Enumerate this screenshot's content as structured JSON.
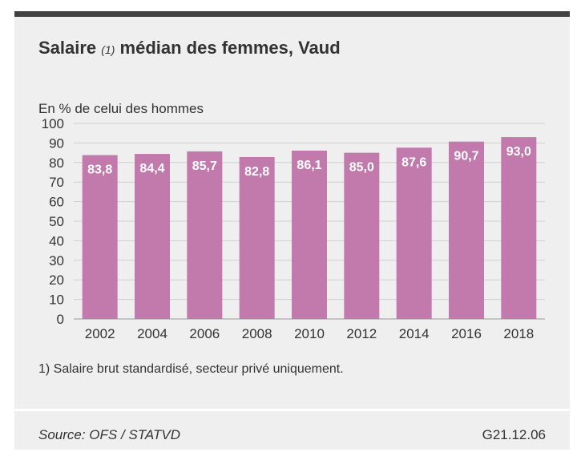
{
  "header": {
    "title_main": "Salaire",
    "title_note": "(1)",
    "title_rest": "médian des femmes, Vaud"
  },
  "colors": {
    "bar": "#c27aad",
    "grid": "#cfcfcf",
    "panel": "#efefef",
    "top_border": "#404040"
  },
  "chart_data": {
    "type": "bar",
    "ylabel": "En % de celui des hommes",
    "ylim": [
      0,
      100
    ],
    "yticks": [
      0,
      10,
      20,
      30,
      40,
      50,
      60,
      70,
      80,
      90,
      100
    ],
    "categories": [
      "2002",
      "2004",
      "2006",
      "2008",
      "2010",
      "2012",
      "2014",
      "2016",
      "2018"
    ],
    "values": [
      83.8,
      84.4,
      85.7,
      82.8,
      86.1,
      85.0,
      87.6,
      90.7,
      93.0
    ],
    "value_labels": [
      "83,8",
      "84,4",
      "85,7",
      "82,8",
      "86,1",
      "85,0",
      "87,6",
      "90,7",
      "93,0"
    ],
    "grid": true,
    "legend": "none"
  },
  "footnote": "1) Salaire brut standardisé, secteur privé uniquement.",
  "source": "Source: OFS / STATVD",
  "code": "G21.12.06"
}
